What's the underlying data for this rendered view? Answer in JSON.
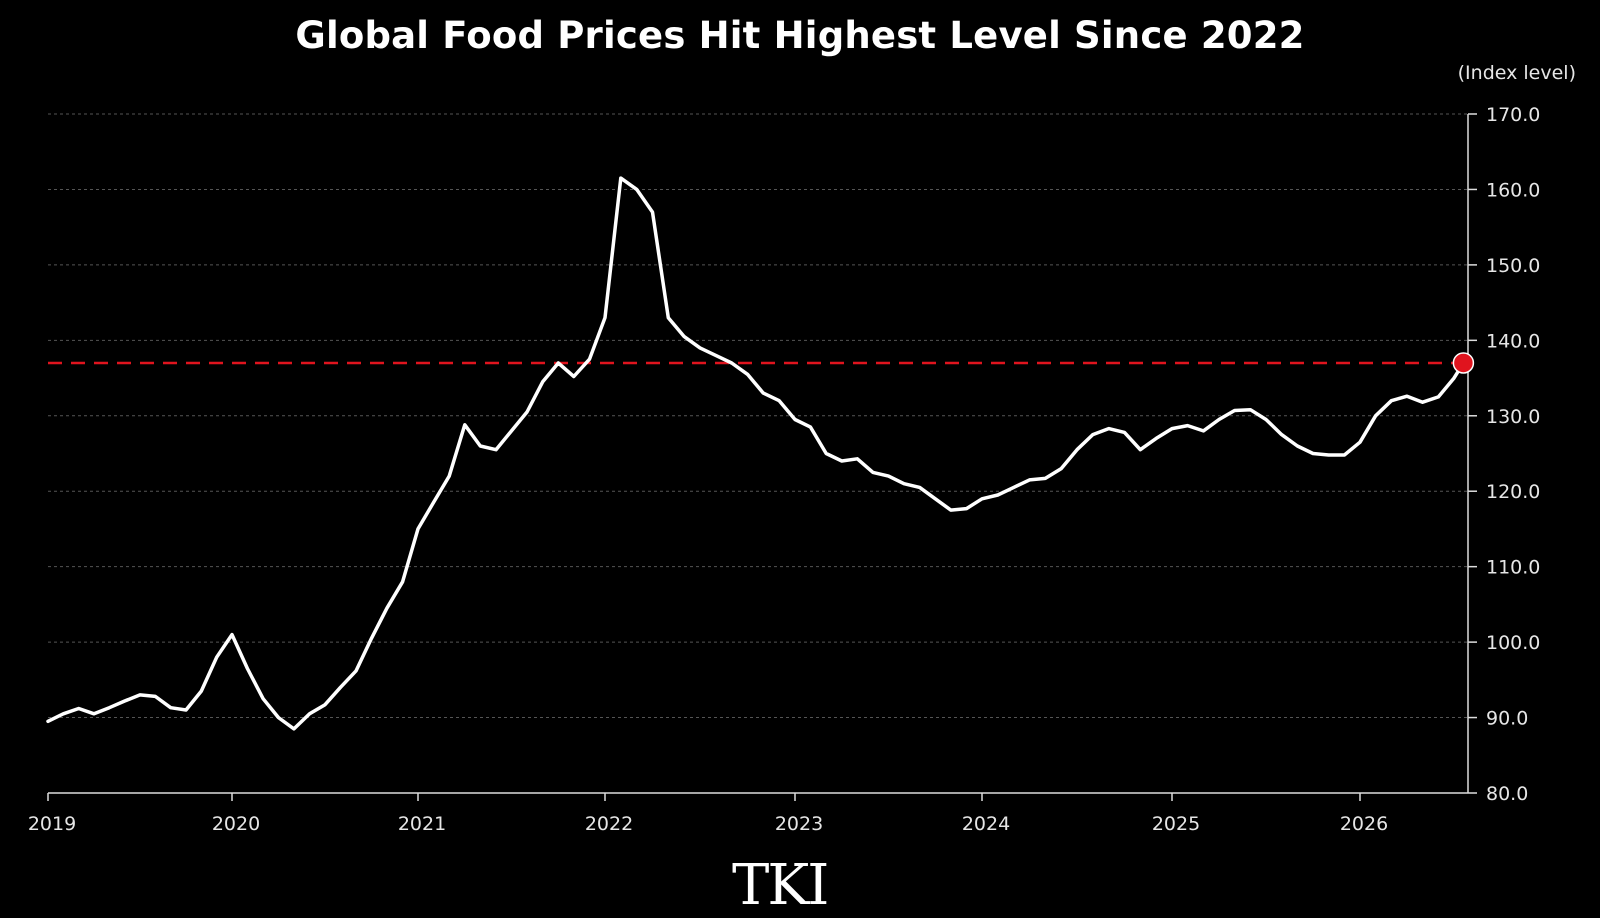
{
  "chart_data": {
    "type": "line",
    "title": "Global Food Prices Hit Highest Level Since 2022",
    "unit_label": "(Index level)",
    "ylim": [
      80,
      170
    ],
    "y_ticks": [
      "170.0",
      "160.0",
      "150.0",
      "140.0",
      "130.0",
      "120.0",
      "110.0",
      "100.0",
      "90.0",
      "80.0"
    ],
    "x_ticks": [
      "2019",
      "2020",
      "2021",
      "2022",
      "2023",
      "2024",
      "2025",
      "2026"
    ],
    "x_range": [
      2019.0,
      2026.6
    ],
    "grid": true,
    "reference_line": {
      "value": 137,
      "color": "#e0141e",
      "style": "dashed"
    },
    "highlight_point": {
      "x": 2026.55,
      "y": 137,
      "color": "#e0141e"
    },
    "line_color": "#ffffff",
    "series": [
      {
        "x": [
          2019.0,
          2019.083,
          2019.167,
          2019.25,
          2019.333,
          2019.417,
          2019.5,
          2019.583,
          2019.667,
          2019.75,
          2019.833,
          2019.917,
          2020.0,
          2020.083,
          2020.167,
          2020.25,
          2020.333,
          2020.417,
          2020.5,
          2020.583,
          2020.667,
          2020.75,
          2020.833,
          2020.917,
          2021.0,
          2021.083,
          2021.167,
          2021.25,
          2021.333,
          2021.417,
          2021.5,
          2021.583,
          2021.667,
          2021.75,
          2021.833,
          2021.917,
          2022.0,
          2022.083,
          2022.167,
          2022.25,
          2022.333,
          2022.417,
          2022.5,
          2022.583,
          2022.667,
          2022.75,
          2022.833,
          2022.917,
          2023.0,
          2023.083,
          2023.167,
          2023.25,
          2023.333,
          2023.417,
          2023.5,
          2023.583,
          2023.667,
          2023.75,
          2023.833,
          2023.917,
          2024.0,
          2024.083,
          2024.167,
          2024.25,
          2024.333,
          2024.417,
          2024.5,
          2024.583,
          2024.667,
          2024.75,
          2024.833,
          2024.917,
          2025.0,
          2025.083,
          2025.167,
          2025.25,
          2025.333,
          2025.417,
          2025.5,
          2025.583,
          2025.667,
          2025.75,
          2025.833,
          2025.917,
          2026.0,
          2026.083,
          2026.167,
          2026.25,
          2026.333,
          2026.417,
          2026.5,
          2026.55
        ],
        "y": [
          89.5,
          90.5,
          91.2,
          90.5,
          91.3,
          92.2,
          93.0,
          92.8,
          91.3,
          91.0,
          93.5,
          98.0,
          101.0,
          96.5,
          92.5,
          90.0,
          88.5,
          90.5,
          91.7,
          94.0,
          96.2,
          100.5,
          104.5,
          108.0,
          115.0,
          118.5,
          122.0,
          128.8,
          126.0,
          125.5,
          128.0,
          130.5,
          134.5,
          137.0,
          135.2,
          137.5,
          143.0,
          161.5,
          160.0,
          157.0,
          143.0,
          140.5,
          139.0,
          138.0,
          137.0,
          135.5,
          133.0,
          132.0,
          129.5,
          128.5,
          125.0,
          124.0,
          124.3,
          122.5,
          122.0,
          121.0,
          120.5,
          119.0,
          117.5,
          117.7,
          119.0,
          119.5,
          120.5,
          121.5,
          121.7,
          123.0,
          125.5,
          127.5,
          128.3,
          127.8,
          125.5,
          127.0,
          128.3,
          128.7,
          128.0,
          129.5,
          130.7,
          130.8,
          129.5,
          127.5,
          126.0,
          125.0,
          124.8,
          124.8,
          126.5,
          130.0,
          132.0,
          132.6,
          131.8,
          132.5,
          135.0,
          137.0
        ]
      }
    ]
  },
  "watermark": "TKI"
}
